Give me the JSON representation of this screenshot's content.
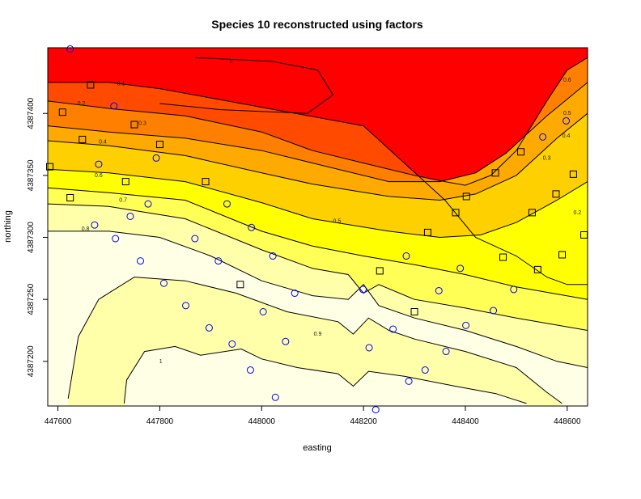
{
  "chart_data": {
    "type": "heatmap",
    "title": "Species 10 reconstructed using factors",
    "xlabel": "easting",
    "ylabel": "northing",
    "xlim": [
      447580,
      448640
    ],
    "ylim": [
      4387164,
      4387453
    ],
    "x_ticks": [
      447600,
      447800,
      448000,
      448200,
      448400,
      448600
    ],
    "y_ticks": [
      4387200,
      4387250,
      4387300,
      4387350,
      4387400
    ],
    "x_tick_labels": [
      "447600",
      "447800",
      "448000",
      "448200",
      "448400",
      "448600"
    ],
    "y_tick_labels": [
      "4387200",
      "4387250",
      "4387300",
      "4387350",
      "4387400"
    ],
    "color_scale": [
      "#ff0000",
      "#ff4a00",
      "#ff7f00",
      "#ffaa00",
      "#ffd000",
      "#ffff00",
      "#ffff55",
      "#ffffaa",
      "#ffffe6"
    ],
    "contours": [
      {
        "level": 0,
        "label": "0",
        "points": [
          [
            447870,
            4387445
          ],
          [
            448020,
            4387442
          ],
          [
            448110,
            4387435
          ],
          [
            448140,
            4387415
          ],
          [
            448090,
            4387400
          ],
          [
            447920,
            4387403
          ],
          [
            447800,
            4387408
          ]
        ]
      },
      {
        "level": 0.1,
        "label": "0.1",
        "points": [
          [
            447580,
            4387425
          ],
          [
            447700,
            4387425
          ],
          [
            447800,
            4387420
          ],
          [
            448000,
            4387405
          ],
          [
            448200,
            4387390
          ],
          [
            448280,
            4387360
          ],
          [
            448360,
            4387330
          ],
          [
            448420,
            4387300
          ],
          [
            448500,
            4387285
          ],
          [
            448560,
            4387268
          ],
          [
            448600,
            4387262
          ],
          [
            448640,
            4387262
          ]
        ]
      },
      {
        "level": 0.2,
        "label": "0.2",
        "points": [
          [
            447580,
            4387410
          ],
          [
            447700,
            4387404
          ],
          [
            447850,
            4387398
          ],
          [
            448000,
            4387385
          ],
          [
            448100,
            4387370
          ],
          [
            448200,
            4387360
          ],
          [
            448300,
            4387350
          ],
          [
            448360,
            4387345
          ],
          [
            448400,
            4387342
          ],
          [
            448450,
            4387350
          ],
          [
            448500,
            4387370
          ],
          [
            448560,
            4387410
          ],
          [
            448600,
            4387435
          ],
          [
            448640,
            4387445
          ]
        ]
      },
      {
        "level": 0.3,
        "label": "0.3",
        "points": [
          [
            447580,
            4387390
          ],
          [
            447700,
            4387385
          ],
          [
            447850,
            4387380
          ],
          [
            448000,
            4387370
          ],
          [
            448100,
            4387360
          ],
          [
            448250,
            4387345
          ],
          [
            448350,
            4387345
          ],
          [
            448420,
            4387352
          ],
          [
            448480,
            4387368
          ],
          [
            448560,
            4387398
          ],
          [
            448640,
            4387425
          ]
        ]
      },
      {
        "level": 0.4,
        "label": "0.4",
        "points": [
          [
            447580,
            4387378
          ],
          [
            447700,
            4387374
          ],
          [
            447850,
            4387366
          ],
          [
            448000,
            4387352
          ],
          [
            448100,
            4387343
          ],
          [
            448250,
            4387333
          ],
          [
            448350,
            4387330
          ],
          [
            448420,
            4387335
          ],
          [
            448500,
            4387350
          ],
          [
            448580,
            4387380
          ],
          [
            448640,
            4387400
          ]
        ]
      },
      {
        "level": 0.5,
        "label": "0.5",
        "points": [
          [
            447580,
            4387355
          ],
          [
            447700,
            4387352
          ],
          [
            447850,
            4387345
          ],
          [
            448000,
            4387328
          ],
          [
            448100,
            4387315
          ],
          [
            448250,
            4387305
          ],
          [
            448350,
            4387300
          ],
          [
            448430,
            4387302
          ],
          [
            448500,
            4387312
          ],
          [
            448580,
            4387330
          ],
          [
            448640,
            4387345
          ]
        ]
      },
      {
        "level": 0.6,
        "label": "0.6",
        "points": [
          [
            447580,
            4387340
          ],
          [
            447700,
            4387336
          ],
          [
            447850,
            4387330
          ],
          [
            448000,
            4387305
          ],
          [
            448100,
            4387293
          ],
          [
            448200,
            4387285
          ],
          [
            448300,
            4387278
          ],
          [
            448400,
            4387270
          ],
          [
            448500,
            4387260
          ],
          [
            448640,
            4387250
          ]
        ]
      },
      {
        "level": 0.7,
        "label": "0.7",
        "points": [
          [
            447580,
            4387327
          ],
          [
            447700,
            4387325
          ],
          [
            447850,
            4387315
          ],
          [
            448000,
            4387290
          ],
          [
            448100,
            4387275
          ],
          [
            448170,
            4387270
          ],
          [
            448200,
            4387255
          ],
          [
            448230,
            4387262
          ],
          [
            448300,
            4387250
          ],
          [
            448400,
            4387243
          ],
          [
            448500,
            4387235
          ],
          [
            448640,
            4387225
          ]
        ]
      },
      {
        "level": 0.8,
        "label": "0.8",
        "points": [
          [
            447580,
            4387305
          ],
          [
            447700,
            4387305
          ],
          [
            447800,
            4387300
          ],
          [
            447900,
            4387285
          ],
          [
            448000,
            4387265
          ],
          [
            448100,
            4387253
          ],
          [
            448170,
            4387250
          ],
          [
            448200,
            4387262
          ],
          [
            448230,
            4387245
          ],
          [
            448300,
            4387235
          ],
          [
            448400,
            4387225
          ],
          [
            448500,
            4387212
          ],
          [
            448580,
            4387200
          ],
          [
            448640,
            4387195
          ]
        ]
      },
      {
        "level": 0.9,
        "label": "0.9",
        "points": [
          [
            447620,
            4387170
          ],
          [
            447640,
            4387220
          ],
          [
            447680,
            4387250
          ],
          [
            447750,
            4387268
          ],
          [
            447850,
            4387265
          ],
          [
            447950,
            4387255
          ],
          [
            448050,
            4387240
          ],
          [
            448150,
            4387232
          ],
          [
            448180,
            4387222
          ],
          [
            448210,
            4387235
          ],
          [
            448250,
            4387225
          ],
          [
            448300,
            4387218
          ],
          [
            448400,
            4387208
          ],
          [
            448500,
            4387195
          ],
          [
            448560,
            4387175
          ],
          [
            448590,
            4387166
          ]
        ]
      },
      {
        "level": 1,
        "label": "1",
        "points": [
          [
            447730,
            4387166
          ],
          [
            447735,
            4387185
          ],
          [
            447770,
            4387208
          ],
          [
            447830,
            4387212
          ],
          [
            447880,
            4387205
          ],
          [
            447960,
            4387210
          ],
          [
            448000,
            4387202
          ],
          [
            448070,
            4387195
          ],
          [
            448150,
            4387190
          ],
          [
            448180,
            4387180
          ],
          [
            448210,
            4387192
          ],
          [
            448280,
            4387188
          ],
          [
            448380,
            4387180
          ],
          [
            448460,
            4387174
          ],
          [
            448520,
            4387166
          ]
        ]
      }
    ],
    "series": [
      {
        "marker": "circle",
        "color": "#0000ff",
        "points": [
          [
            447624,
            4387452
          ],
          [
            447710,
            4387406
          ],
          [
            447680,
            4387359
          ],
          [
            447793,
            4387364
          ],
          [
            447777,
            4387327
          ],
          [
            447672,
            4387310
          ],
          [
            447742,
            4387317
          ],
          [
            447932,
            4387327
          ],
          [
            447713,
            4387299
          ],
          [
            447869,
            4387299
          ],
          [
            447762,
            4387281
          ],
          [
            447808,
            4387263
          ],
          [
            447915,
            4387281
          ],
          [
            447980,
            4387308
          ],
          [
            448022,
            4387285
          ],
          [
            448065,
            4387255
          ],
          [
            448199,
            4387258
          ],
          [
            448284,
            4387285
          ],
          [
            448003,
            4387240
          ],
          [
            447851,
            4387245
          ],
          [
            447897,
            4387227
          ],
          [
            447942,
            4387214
          ],
          [
            448047,
            4387216
          ],
          [
            448211,
            4387211
          ],
          [
            448258,
            4387226
          ],
          [
            448348,
            4387257
          ],
          [
            448390,
            4387275
          ],
          [
            448455,
            4387241
          ],
          [
            448495,
            4387258
          ],
          [
            448401,
            4387229
          ],
          [
            448362,
            4387208
          ],
          [
            448321,
            4387193
          ],
          [
            448289,
            4387184
          ],
          [
            447978,
            4387193
          ],
          [
            448027,
            4387171
          ],
          [
            448224,
            4387161
          ],
          [
            448552,
            4387381
          ],
          [
            448598,
            4387394
          ]
        ]
      },
      {
        "marker": "square",
        "color": "#000000",
        "points": [
          [
            447664,
            4387423
          ],
          [
            447609,
            4387401
          ],
          [
            447750,
            4387391
          ],
          [
            447648,
            4387379
          ],
          [
            447800,
            4387375
          ],
          [
            447584,
            4387357
          ],
          [
            447733,
            4387345
          ],
          [
            447890,
            4387345
          ],
          [
            447624,
            4387332
          ],
          [
            447958,
            4387262
          ],
          [
            448232,
            4387273
          ],
          [
            448326,
            4387304
          ],
          [
            448381,
            4387320
          ],
          [
            448402,
            4387333
          ],
          [
            448459,
            4387352
          ],
          [
            448474,
            4387284
          ],
          [
            448509,
            4387369
          ],
          [
            448531,
            4387320
          ],
          [
            448578,
            4387335
          ],
          [
            448612,
            4387351
          ],
          [
            448542,
            4387274
          ],
          [
            448590,
            4387286
          ],
          [
            448633,
            4387302
          ],
          [
            448300,
            4387240
          ]
        ]
      }
    ],
    "contour_label_positions": [
      {
        "label": "0",
        "xy": [
          447940,
          4387442
        ]
      },
      {
        "label": "0.1",
        "xy": [
          447724,
          4387424
        ]
      },
      {
        "label": "0.2",
        "xy": [
          447646,
          4387408
        ]
      },
      {
        "label": "0.3",
        "xy": [
          447766,
          4387392
        ]
      },
      {
        "label": "0.4",
        "xy": [
          447688,
          4387377
        ]
      },
      {
        "label": "0.5",
        "xy": [
          448148,
          4387313
        ]
      },
      {
        "label": "0.6",
        "xy": [
          447680,
          4387350
        ]
      },
      {
        "label": "0.7",
        "xy": [
          447728,
          4387330
        ]
      },
      {
        "label": "0.8",
        "xy": [
          447654,
          4387307
        ]
      },
      {
        "label": "0.9",
        "xy": [
          448110,
          4387222
        ]
      },
      {
        "label": "1",
        "xy": [
          447802,
          4387200
        ]
      },
      {
        "label": "0.6",
        "xy": [
          448600,
          4387427
        ]
      },
      {
        "label": "0.5",
        "xy": [
          448600,
          4387400
        ]
      },
      {
        "label": "0.4",
        "xy": [
          448598,
          4387382
        ]
      },
      {
        "label": "0.3",
        "xy": [
          448560,
          4387364
        ]
      },
      {
        "label": "0.2",
        "xy": [
          448620,
          4387320
        ]
      }
    ]
  }
}
